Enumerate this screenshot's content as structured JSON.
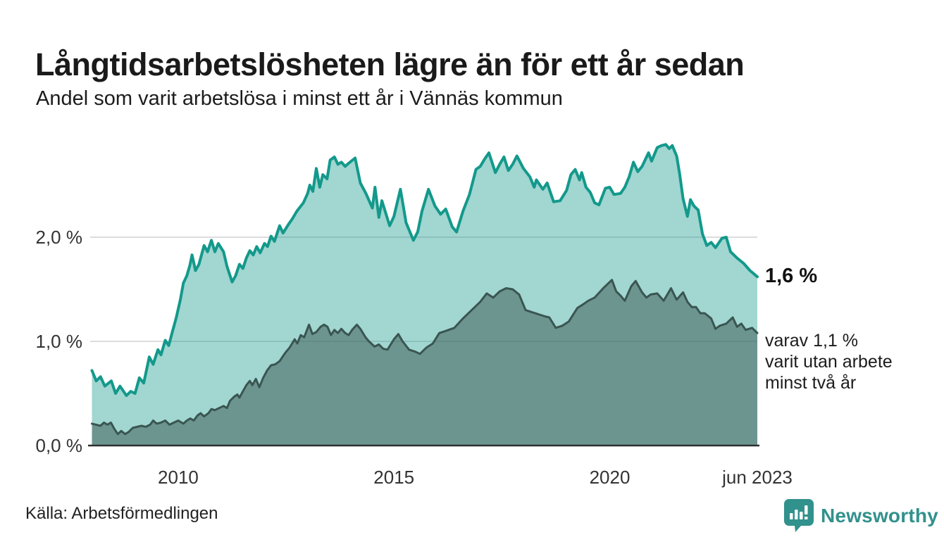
{
  "header": {
    "title": "Långtidsarbetslösheten lägre än för ett år sedan",
    "subtitle": "Andel som varit arbetslösa i minst ett år i Vännäs kommun"
  },
  "annotations": {
    "value_label": "1,6 %",
    "note_lines": [
      "varav 1,1 %",
      "varit utan arbete",
      "minst två år"
    ]
  },
  "footer": {
    "source": "Källa: Arbetsförmedlingen",
    "brand": "Newsworthy"
  },
  "colors": {
    "title_text": "#1a1a1a",
    "axis_text": "#333333",
    "gridline": "#dcdcde",
    "axis_line": "#2f2f2f",
    "series_1plus_stroke": "#13998b",
    "series_1plus_fill": "rgba(19,153,139,0.40)",
    "series_2plus_stroke": "#3a5551",
    "series_2plus_fill": "rgba(56,84,79,0.50)",
    "brand_teal": "#31918c"
  },
  "chart_data": {
    "type": "area",
    "title": "Långtidsarbetslösheten lägre än för ett år sedan",
    "subtitle": "Andel som varit arbetslösa i minst ett år i Vännäs kommun",
    "unit": "%",
    "grid": "horizontal",
    "legend": "none, annotated at line ends",
    "x_axis": {
      "range_years": [
        2007.96,
        2023.42
      ],
      "ticks": [
        {
          "t": 2010,
          "label": "2010"
        },
        {
          "t": 2015,
          "label": "2015"
        },
        {
          "t": 2020,
          "label": "2020"
        },
        {
          "t": 2023.42,
          "label": "jun 2023"
        }
      ]
    },
    "y_axis": {
      "range": [
        0,
        3.05
      ],
      "ticks": [
        {
          "v": 0,
          "label": "0,0 %"
        },
        {
          "v": 1,
          "label": "1,0 %"
        },
        {
          "v": 2,
          "label": "2,0 %"
        }
      ]
    },
    "series": [
      {
        "name": "Arbetslösa minst ett år",
        "end_value_pct": 1.6,
        "points": [
          [
            2008.0,
            0.72
          ],
          [
            2008.1,
            0.62
          ],
          [
            2008.2,
            0.66
          ],
          [
            2008.3,
            0.57
          ],
          [
            2008.45,
            0.62
          ],
          [
            2008.55,
            0.5
          ],
          [
            2008.65,
            0.57
          ],
          [
            2008.8,
            0.48
          ],
          [
            2008.9,
            0.52
          ],
          [
            2009.0,
            0.5
          ],
          [
            2009.1,
            0.65
          ],
          [
            2009.2,
            0.6
          ],
          [
            2009.33,
            0.85
          ],
          [
            2009.42,
            0.78
          ],
          [
            2009.53,
            0.92
          ],
          [
            2009.6,
            0.87
          ],
          [
            2009.7,
            1.01
          ],
          [
            2009.78,
            0.96
          ],
          [
            2009.87,
            1.1
          ],
          [
            2009.95,
            1.22
          ],
          [
            2010.05,
            1.4
          ],
          [
            2010.12,
            1.56
          ],
          [
            2010.2,
            1.63
          ],
          [
            2010.27,
            1.73
          ],
          [
            2010.32,
            1.83
          ],
          [
            2010.4,
            1.68
          ],
          [
            2010.48,
            1.74
          ],
          [
            2010.6,
            1.92
          ],
          [
            2010.68,
            1.86
          ],
          [
            2010.77,
            1.97
          ],
          [
            2010.85,
            1.86
          ],
          [
            2010.93,
            1.94
          ],
          [
            2011.05,
            1.86
          ],
          [
            2011.13,
            1.72
          ],
          [
            2011.25,
            1.57
          ],
          [
            2011.33,
            1.63
          ],
          [
            2011.42,
            1.74
          ],
          [
            2011.5,
            1.7
          ],
          [
            2011.58,
            1.8
          ],
          [
            2011.66,
            1.87
          ],
          [
            2011.74,
            1.83
          ],
          [
            2011.82,
            1.91
          ],
          [
            2011.9,
            1.85
          ],
          [
            2012.0,
            1.94
          ],
          [
            2012.07,
            1.91
          ],
          [
            2012.15,
            2.01
          ],
          [
            2012.23,
            1.96
          ],
          [
            2012.35,
            2.11
          ],
          [
            2012.43,
            2.04
          ],
          [
            2012.55,
            2.12
          ],
          [
            2012.65,
            2.18
          ],
          [
            2012.75,
            2.25
          ],
          [
            2012.9,
            2.33
          ],
          [
            2013.0,
            2.42
          ],
          [
            2013.05,
            2.5
          ],
          [
            2013.12,
            2.44
          ],
          [
            2013.2,
            2.66
          ],
          [
            2013.28,
            2.48
          ],
          [
            2013.35,
            2.6
          ],
          [
            2013.45,
            2.56
          ],
          [
            2013.52,
            2.74
          ],
          [
            2013.62,
            2.77
          ],
          [
            2013.7,
            2.7
          ],
          [
            2013.78,
            2.72
          ],
          [
            2013.87,
            2.68
          ],
          [
            2013.95,
            2.71
          ],
          [
            2014.1,
            2.76
          ],
          [
            2014.22,
            2.52
          ],
          [
            2014.35,
            2.42
          ],
          [
            2014.5,
            2.28
          ],
          [
            2014.56,
            2.48
          ],
          [
            2014.65,
            2.19
          ],
          [
            2014.72,
            2.35
          ],
          [
            2014.9,
            2.11
          ],
          [
            2015.0,
            2.2
          ],
          [
            2015.15,
            2.46
          ],
          [
            2015.28,
            2.14
          ],
          [
            2015.45,
            1.97
          ],
          [
            2015.55,
            2.05
          ],
          [
            2015.65,
            2.25
          ],
          [
            2015.8,
            2.46
          ],
          [
            2015.95,
            2.3
          ],
          [
            2016.08,
            2.22
          ],
          [
            2016.2,
            2.27
          ],
          [
            2016.35,
            2.1
          ],
          [
            2016.45,
            2.05
          ],
          [
            2016.6,
            2.25
          ],
          [
            2016.75,
            2.41
          ],
          [
            2016.9,
            2.65
          ],
          [
            2017.0,
            2.68
          ],
          [
            2017.1,
            2.75
          ],
          [
            2017.2,
            2.81
          ],
          [
            2017.35,
            2.62
          ],
          [
            2017.45,
            2.7
          ],
          [
            2017.55,
            2.77
          ],
          [
            2017.65,
            2.64
          ],
          [
            2017.75,
            2.7
          ],
          [
            2017.85,
            2.78
          ],
          [
            2018.0,
            2.66
          ],
          [
            2018.15,
            2.58
          ],
          [
            2018.25,
            2.48
          ],
          [
            2018.3,
            2.55
          ],
          [
            2018.45,
            2.46
          ],
          [
            2018.55,
            2.52
          ],
          [
            2018.7,
            2.34
          ],
          [
            2018.85,
            2.35
          ],
          [
            2019.0,
            2.45
          ],
          [
            2019.1,
            2.6
          ],
          [
            2019.2,
            2.65
          ],
          [
            2019.3,
            2.55
          ],
          [
            2019.35,
            2.62
          ],
          [
            2019.45,
            2.48
          ],
          [
            2019.55,
            2.43
          ],
          [
            2019.65,
            2.33
          ],
          [
            2019.75,
            2.31
          ],
          [
            2019.9,
            2.47
          ],
          [
            2020.0,
            2.48
          ],
          [
            2020.1,
            2.41
          ],
          [
            2020.25,
            2.42
          ],
          [
            2020.35,
            2.48
          ],
          [
            2020.45,
            2.58
          ],
          [
            2020.55,
            2.72
          ],
          [
            2020.65,
            2.63
          ],
          [
            2020.75,
            2.68
          ],
          [
            2020.9,
            2.81
          ],
          [
            2020.97,
            2.73
          ],
          [
            2021.1,
            2.86
          ],
          [
            2021.2,
            2.88
          ],
          [
            2021.3,
            2.89
          ],
          [
            2021.38,
            2.85
          ],
          [
            2021.45,
            2.88
          ],
          [
            2021.55,
            2.78
          ],
          [
            2021.62,
            2.61
          ],
          [
            2021.7,
            2.37
          ],
          [
            2021.8,
            2.2
          ],
          [
            2021.87,
            2.36
          ],
          [
            2021.95,
            2.3
          ],
          [
            2022.05,
            2.26
          ],
          [
            2022.15,
            2.03
          ],
          [
            2022.25,
            1.92
          ],
          [
            2022.35,
            1.95
          ],
          [
            2022.45,
            1.9
          ],
          [
            2022.6,
            1.99
          ],
          [
            2022.7,
            2.0
          ],
          [
            2022.8,
            1.86
          ],
          [
            2022.95,
            1.8
          ],
          [
            2023.1,
            1.75
          ],
          [
            2023.25,
            1.68
          ],
          [
            2023.42,
            1.62
          ]
        ]
      },
      {
        "name": "Arbetslösa minst två år",
        "end_value_pct": 1.1,
        "points": [
          [
            2008.0,
            0.21
          ],
          [
            2008.2,
            0.19
          ],
          [
            2008.28,
            0.22
          ],
          [
            2008.36,
            0.2
          ],
          [
            2008.44,
            0.22
          ],
          [
            2008.52,
            0.16
          ],
          [
            2008.6,
            0.11
          ],
          [
            2008.68,
            0.14
          ],
          [
            2008.77,
            0.11
          ],
          [
            2008.85,
            0.13
          ],
          [
            2008.95,
            0.17
          ],
          [
            2009.05,
            0.18
          ],
          [
            2009.15,
            0.19
          ],
          [
            2009.25,
            0.18
          ],
          [
            2009.35,
            0.2
          ],
          [
            2009.42,
            0.24
          ],
          [
            2009.5,
            0.21
          ],
          [
            2009.6,
            0.22
          ],
          [
            2009.7,
            0.24
          ],
          [
            2009.8,
            0.2
          ],
          [
            2009.9,
            0.22
          ],
          [
            2010.0,
            0.24
          ],
          [
            2010.12,
            0.21
          ],
          [
            2010.2,
            0.24
          ],
          [
            2010.28,
            0.26
          ],
          [
            2010.36,
            0.24
          ],
          [
            2010.45,
            0.29
          ],
          [
            2010.52,
            0.31
          ],
          [
            2010.6,
            0.28
          ],
          [
            2010.7,
            0.31
          ],
          [
            2010.77,
            0.35
          ],
          [
            2010.85,
            0.34
          ],
          [
            2010.95,
            0.36
          ],
          [
            2011.05,
            0.38
          ],
          [
            2011.13,
            0.36
          ],
          [
            2011.2,
            0.43
          ],
          [
            2011.3,
            0.47
          ],
          [
            2011.37,
            0.49
          ],
          [
            2011.42,
            0.46
          ],
          [
            2011.5,
            0.52
          ],
          [
            2011.58,
            0.58
          ],
          [
            2011.66,
            0.62
          ],
          [
            2011.72,
            0.58
          ],
          [
            2011.8,
            0.64
          ],
          [
            2011.88,
            0.56
          ],
          [
            2011.97,
            0.65
          ],
          [
            2012.06,
            0.72
          ],
          [
            2012.15,
            0.77
          ],
          [
            2012.25,
            0.78
          ],
          [
            2012.35,
            0.81
          ],
          [
            2012.48,
            0.89
          ],
          [
            2012.58,
            0.94
          ],
          [
            2012.7,
            1.02
          ],
          [
            2012.76,
            0.98
          ],
          [
            2012.84,
            1.06
          ],
          [
            2012.92,
            1.04
          ],
          [
            2013.03,
            1.16
          ],
          [
            2013.11,
            1.07
          ],
          [
            2013.2,
            1.09
          ],
          [
            2013.3,
            1.14
          ],
          [
            2013.38,
            1.16
          ],
          [
            2013.46,
            1.14
          ],
          [
            2013.54,
            1.06
          ],
          [
            2013.62,
            1.11
          ],
          [
            2013.7,
            1.08
          ],
          [
            2013.78,
            1.12
          ],
          [
            2013.87,
            1.08
          ],
          [
            2013.95,
            1.06
          ],
          [
            2014.03,
            1.11
          ],
          [
            2014.14,
            1.16
          ],
          [
            2014.22,
            1.12
          ],
          [
            2014.34,
            1.04
          ],
          [
            2014.42,
            1.0
          ],
          [
            2014.55,
            0.95
          ],
          [
            2014.65,
            0.97
          ],
          [
            2014.75,
            0.93
          ],
          [
            2014.85,
            0.92
          ],
          [
            2015.0,
            1.02
          ],
          [
            2015.1,
            1.07
          ],
          [
            2015.2,
            1.0
          ],
          [
            2015.35,
            0.92
          ],
          [
            2015.5,
            0.9
          ],
          [
            2015.6,
            0.88
          ],
          [
            2015.75,
            0.94
          ],
          [
            2015.9,
            0.98
          ],
          [
            2016.05,
            1.08
          ],
          [
            2016.2,
            1.1
          ],
          [
            2016.4,
            1.13
          ],
          [
            2016.6,
            1.22
          ],
          [
            2016.8,
            1.3
          ],
          [
            2017.0,
            1.38
          ],
          [
            2017.15,
            1.46
          ],
          [
            2017.3,
            1.42
          ],
          [
            2017.45,
            1.48
          ],
          [
            2017.6,
            1.51
          ],
          [
            2017.75,
            1.5
          ],
          [
            2017.9,
            1.45
          ],
          [
            2018.05,
            1.3
          ],
          [
            2018.2,
            1.28
          ],
          [
            2018.35,
            1.26
          ],
          [
            2018.5,
            1.24
          ],
          [
            2018.6,
            1.23
          ],
          [
            2018.75,
            1.13
          ],
          [
            2018.9,
            1.15
          ],
          [
            2019.05,
            1.19
          ],
          [
            2019.25,
            1.32
          ],
          [
            2019.4,
            1.36
          ],
          [
            2019.5,
            1.39
          ],
          [
            2019.65,
            1.42
          ],
          [
            2019.85,
            1.51
          ],
          [
            2020.05,
            1.59
          ],
          [
            2020.15,
            1.48
          ],
          [
            2020.25,
            1.44
          ],
          [
            2020.35,
            1.39
          ],
          [
            2020.5,
            1.53
          ],
          [
            2020.6,
            1.58
          ],
          [
            2020.75,
            1.47
          ],
          [
            2020.85,
            1.42
          ],
          [
            2020.95,
            1.45
          ],
          [
            2021.1,
            1.46
          ],
          [
            2021.25,
            1.39
          ],
          [
            2021.42,
            1.51
          ],
          [
            2021.55,
            1.4
          ],
          [
            2021.7,
            1.47
          ],
          [
            2021.8,
            1.38
          ],
          [
            2021.9,
            1.33
          ],
          [
            2022.0,
            1.33
          ],
          [
            2022.1,
            1.27
          ],
          [
            2022.2,
            1.27
          ],
          [
            2022.35,
            1.22
          ],
          [
            2022.45,
            1.12
          ],
          [
            2022.55,
            1.15
          ],
          [
            2022.7,
            1.17
          ],
          [
            2022.85,
            1.23
          ],
          [
            2022.95,
            1.14
          ],
          [
            2023.05,
            1.17
          ],
          [
            2023.15,
            1.11
          ],
          [
            2023.3,
            1.13
          ],
          [
            2023.42,
            1.08
          ]
        ]
      }
    ]
  }
}
